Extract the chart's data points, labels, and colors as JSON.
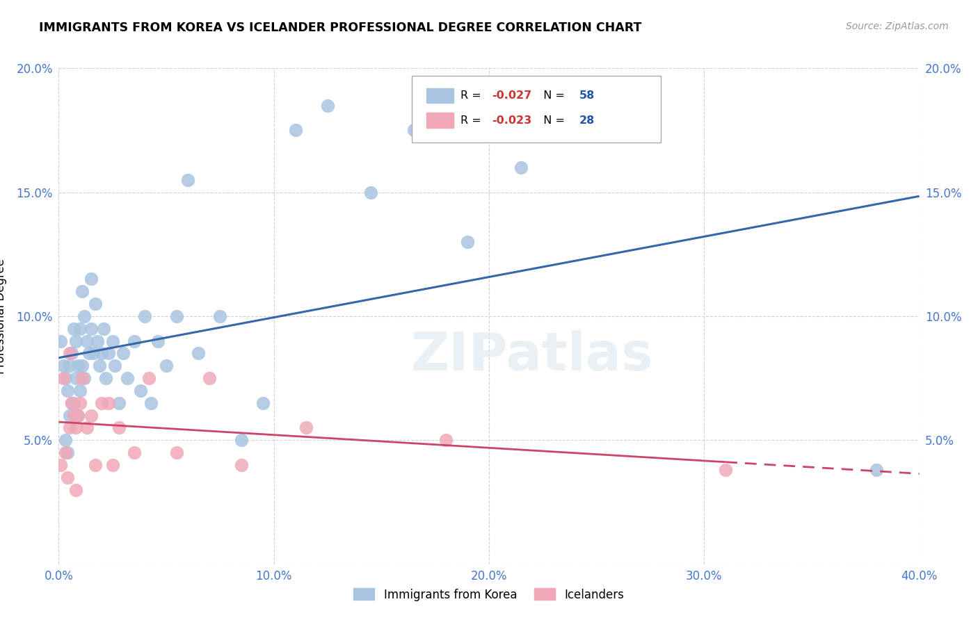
{
  "title": "IMMIGRANTS FROM KOREA VS ICELANDER PROFESSIONAL DEGREE CORRELATION CHART",
  "source": "Source: ZipAtlas.com",
  "ylabel": "Professional Degree",
  "xlim": [
    0.0,
    0.4
  ],
  "ylim": [
    0.0,
    0.2
  ],
  "xticks": [
    0.0,
    0.1,
    0.2,
    0.3,
    0.4
  ],
  "yticks": [
    0.0,
    0.05,
    0.1,
    0.15,
    0.2
  ],
  "xtick_labels": [
    "0.0%",
    "10.0%",
    "20.0%",
    "30.0%",
    "40.0%"
  ],
  "ytick_labels": [
    "",
    "5.0%",
    "10.0%",
    "15.0%",
    "20.0%"
  ],
  "korea_color": "#a8c4e0",
  "iceland_color": "#f0a8b8",
  "korea_line_color": "#3366aa",
  "iceland_line_color": "#cc4466",
  "korea_R": "-0.027",
  "korea_N": "58",
  "iceland_R": "-0.023",
  "iceland_N": "28",
  "watermark": "ZIPatlas",
  "korea_scatter_x": [
    0.001,
    0.002,
    0.003,
    0.003,
    0.004,
    0.004,
    0.005,
    0.005,
    0.006,
    0.006,
    0.007,
    0.007,
    0.008,
    0.008,
    0.009,
    0.009,
    0.01,
    0.01,
    0.011,
    0.011,
    0.012,
    0.012,
    0.013,
    0.014,
    0.015,
    0.015,
    0.016,
    0.017,
    0.018,
    0.019,
    0.02,
    0.021,
    0.022,
    0.023,
    0.025,
    0.026,
    0.028,
    0.03,
    0.032,
    0.035,
    0.038,
    0.04,
    0.043,
    0.046,
    0.05,
    0.055,
    0.06,
    0.065,
    0.075,
    0.085,
    0.095,
    0.11,
    0.125,
    0.145,
    0.165,
    0.19,
    0.215,
    0.38
  ],
  "korea_scatter_y": [
    0.09,
    0.08,
    0.075,
    0.05,
    0.07,
    0.045,
    0.08,
    0.06,
    0.085,
    0.065,
    0.095,
    0.065,
    0.09,
    0.075,
    0.08,
    0.06,
    0.095,
    0.07,
    0.11,
    0.08,
    0.1,
    0.075,
    0.09,
    0.085,
    0.115,
    0.095,
    0.085,
    0.105,
    0.09,
    0.08,
    0.085,
    0.095,
    0.075,
    0.085,
    0.09,
    0.08,
    0.065,
    0.085,
    0.075,
    0.09,
    0.07,
    0.1,
    0.065,
    0.09,
    0.08,
    0.1,
    0.155,
    0.085,
    0.1,
    0.05,
    0.065,
    0.175,
    0.185,
    0.15,
    0.175,
    0.13,
    0.16,
    0.038
  ],
  "iceland_scatter_x": [
    0.001,
    0.002,
    0.003,
    0.004,
    0.005,
    0.005,
    0.006,
    0.007,
    0.008,
    0.008,
    0.009,
    0.01,
    0.011,
    0.013,
    0.015,
    0.017,
    0.02,
    0.023,
    0.025,
    0.028,
    0.035,
    0.042,
    0.055,
    0.07,
    0.085,
    0.115,
    0.18,
    0.31
  ],
  "iceland_scatter_y": [
    0.04,
    0.075,
    0.045,
    0.035,
    0.085,
    0.055,
    0.065,
    0.06,
    0.055,
    0.03,
    0.06,
    0.065,
    0.075,
    0.055,
    0.06,
    0.04,
    0.065,
    0.065,
    0.04,
    0.055,
    0.045,
    0.075,
    0.045,
    0.075,
    0.04,
    0.055,
    0.05,
    0.038
  ],
  "background_color": "#ffffff",
  "grid_color": "#cccccc",
  "tick_color": "#4477cc"
}
